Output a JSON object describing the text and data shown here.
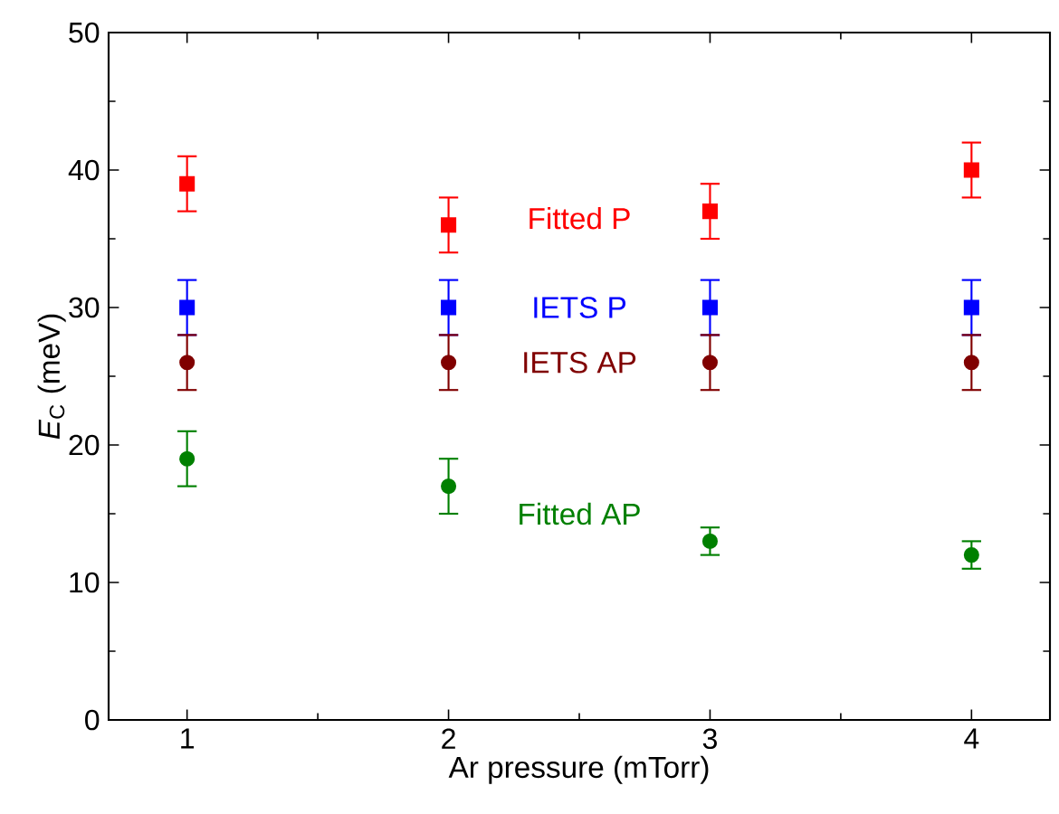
{
  "chart_data": {
    "type": "scatter",
    "xlabel": "Ar pressure (mTorr)",
    "ylabel": "*E*$_{C}$ (meV)",
    "x": [
      1,
      2,
      3,
      4
    ],
    "series": [
      {
        "name": "Fitted P",
        "color": "#ff0000",
        "marker": "square",
        "values": [
          39,
          36,
          37,
          40
        ],
        "errors": [
          2,
          2,
          2,
          2
        ]
      },
      {
        "name": "IETS P",
        "color": "#0000ff",
        "marker": "square",
        "values": [
          30,
          30,
          30,
          30
        ],
        "errors": [
          2,
          2,
          2,
          2
        ]
      },
      {
        "name": "IETS AP",
        "color": "#800000",
        "marker": "circle",
        "values": [
          26,
          26,
          26,
          26
        ],
        "errors": [
          2,
          2,
          2,
          2
        ]
      },
      {
        "name": "Fitted AP",
        "color": "#008000",
        "marker": "circle",
        "values": [
          19,
          17,
          13,
          12
        ],
        "errors": [
          2,
          2,
          1,
          1
        ]
      }
    ],
    "xlim": [
      0.7,
      4.3
    ],
    "ylim": [
      0,
      50
    ],
    "xticks": [
      1,
      2,
      3,
      4
    ],
    "yticks": [
      0,
      10,
      20,
      30,
      40,
      50
    ],
    "grid": false
  }
}
